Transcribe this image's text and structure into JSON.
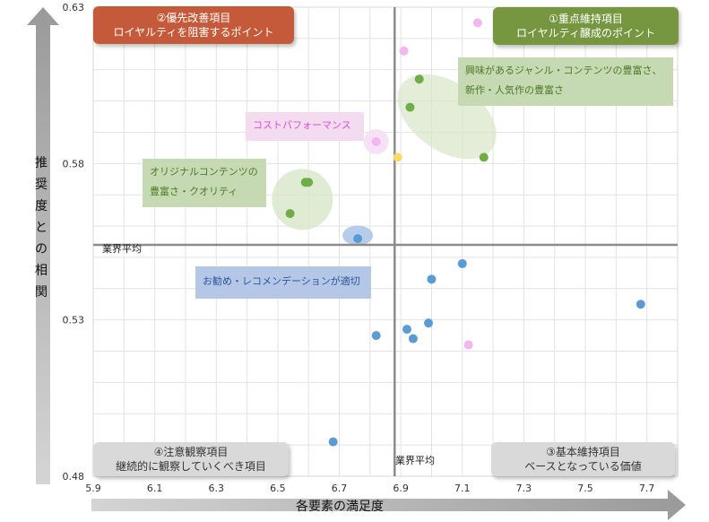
{
  "quadrants": {
    "q1": {
      "line1": "①重点維持項目",
      "line2": "ロイヤルティ醸成のポイント",
      "color": "#76973f"
    },
    "q2": {
      "line1": "②優先改善項目",
      "line2": "ロイヤルティを阻害するポイント",
      "color": "#c55a3a"
    },
    "q3": {
      "line1": "③基本維持項目",
      "line2": "ベースとなっている価値",
      "color": "#d9d9d9"
    },
    "q4": {
      "line1": "④注意観察項目",
      "line2": "継続的に観察していくべき項目",
      "color": "#d9d9d9"
    }
  },
  "annotations": {
    "genre": {
      "line1": "興味があるジャンル・コンテンツの豊富さ、",
      "line2": "新作・人気作の豊富さ"
    },
    "cost": {
      "text": "コストパフォーマンス"
    },
    "original": {
      "line1": "オリジナルコンテンツの",
      "line2": "豊富さ・クオリティ"
    },
    "recommend": {
      "text": "お勧め・レコメンデーションが適切"
    }
  },
  "avg_labels": {
    "y": "業界平均",
    "x": "業界平均"
  },
  "chart_data": {
    "type": "scatter",
    "xlabel": "各要素の満足度",
    "ylabel": "推奨度との相関",
    "xlim": [
      5.9,
      7.8
    ],
    "ylim": [
      0.48,
      0.63
    ],
    "xticks": [
      "5.9",
      "6.1",
      "6.3",
      "6.5",
      "6.7",
      "6.9",
      "7.1",
      "7.3",
      "7.5",
      "7.7"
    ],
    "yticks": [
      "0.48",
      "0.53",
      "0.58",
      "0.63"
    ],
    "grid": true,
    "avg_x": 6.88,
    "avg_y": 0.554,
    "series": [
      {
        "color": "#5b9bd5",
        "points": [
          [
            6.76,
            0.556
          ],
          [
            7.1,
            0.548
          ],
          [
            7.0,
            0.543
          ],
          [
            7.68,
            0.535
          ],
          [
            6.99,
            0.529
          ],
          [
            6.92,
            0.527
          ],
          [
            6.94,
            0.524
          ],
          [
            6.82,
            0.525
          ],
          [
            6.68,
            0.491
          ]
        ]
      },
      {
        "color": "#70ad47",
        "points": [
          [
            6.96,
            0.607
          ],
          [
            6.93,
            0.598
          ],
          [
            7.17,
            0.582
          ],
          [
            6.6,
            0.574
          ],
          [
            6.59,
            0.574
          ],
          [
            6.54,
            0.564
          ]
        ]
      },
      {
        "color": "#f4b6f0",
        "points": [
          [
            7.15,
            0.625
          ],
          [
            6.91,
            0.616
          ],
          [
            6.82,
            0.587
          ],
          [
            7.12,
            0.522
          ]
        ]
      },
      {
        "color": "#ffd966",
        "points": [
          [
            6.89,
            0.582
          ]
        ]
      }
    ]
  }
}
